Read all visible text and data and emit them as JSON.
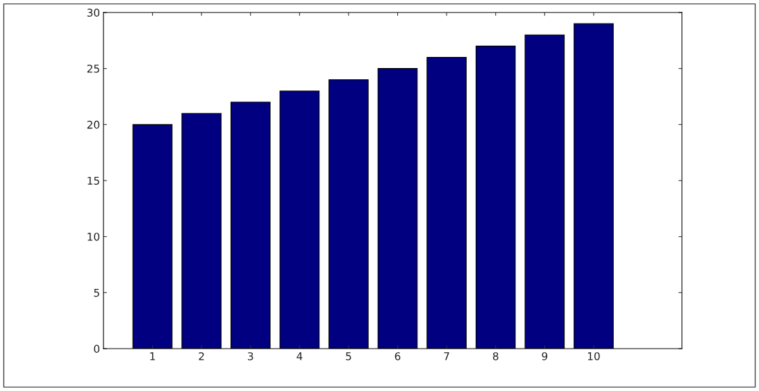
{
  "chart_data": {
    "type": "bar",
    "x": [
      1,
      2,
      3,
      4,
      5,
      6,
      7,
      8,
      9,
      10
    ],
    "values": [
      20,
      21,
      22,
      23,
      24,
      25,
      26,
      27,
      28,
      29
    ],
    "color": "#000080",
    "xlim": [
      0,
      11.8
    ],
    "xticks": [
      1,
      2,
      3,
      4,
      5,
      6,
      7,
      8,
      9,
      10
    ],
    "ylim": [
      0,
      30
    ],
    "yticks": [
      0,
      5,
      10,
      15,
      20,
      25,
      30
    ],
    "grid": false
  }
}
